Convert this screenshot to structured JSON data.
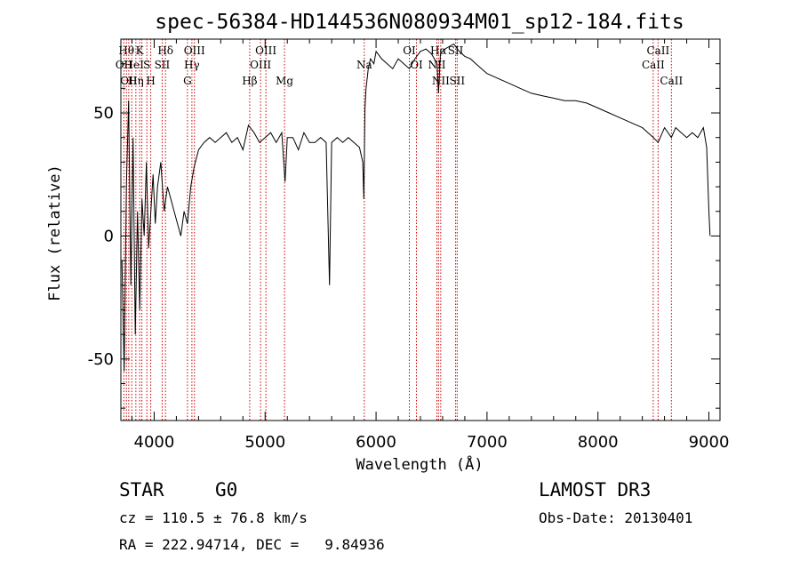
{
  "chart_data": {
    "type": "line",
    "title": "spec-56384-HD144536N080934M01_sp12-184.fits",
    "xlabel": "Wavelength (Å)",
    "ylabel": "Flux (relative)",
    "xlim": [
      3700,
      9100
    ],
    "ylim": [
      -75,
      80
    ],
    "xticks": [
      4000,
      5000,
      6000,
      7000,
      8000,
      9000
    ],
    "yticks": [
      -50,
      0,
      50
    ],
    "line_color": "#000000",
    "marker_color": "#cc0000",
    "series": [
      {
        "name": "flux",
        "x": [
          3710,
          3730,
          3750,
          3770,
          3790,
          3810,
          3830,
          3850,
          3870,
          3890,
          3910,
          3930,
          3950,
          3970,
          3990,
          4010,
          4030,
          4060,
          4090,
          4120,
          4150,
          4180,
          4210,
          4240,
          4270,
          4300,
          4330,
          4360,
          4400,
          4450,
          4500,
          4550,
          4600,
          4650,
          4700,
          4750,
          4800,
          4850,
          4900,
          4950,
          5000,
          5050,
          5100,
          5150,
          5180,
          5200,
          5250,
          5300,
          5350,
          5400,
          5450,
          5500,
          5550,
          5580,
          5600,
          5650,
          5700,
          5750,
          5800,
          5850,
          5880,
          5890,
          5900,
          5910,
          5930,
          5950,
          5980,
          6000,
          6050,
          6100,
          6150,
          6200,
          6250,
          6300,
          6350,
          6400,
          6450,
          6500,
          6550,
          6563,
          6580,
          6620,
          6700,
          6750,
          6800,
          6850,
          6900,
          6950,
          7000,
          7100,
          7200,
          7300,
          7400,
          7500,
          7600,
          7700,
          7800,
          7900,
          8000,
          8100,
          8200,
          8300,
          8400,
          8450,
          8500,
          8542,
          8600,
          8662,
          8700,
          8750,
          8800,
          8850,
          8900,
          8950,
          8980,
          9000,
          9010
        ],
        "values": [
          -10,
          -55,
          20,
          55,
          -20,
          40,
          -40,
          10,
          -30,
          15,
          0,
          30,
          -5,
          10,
          25,
          5,
          20,
          30,
          10,
          20,
          15,
          10,
          5,
          0,
          10,
          5,
          20,
          28,
          35,
          38,
          40,
          38,
          40,
          42,
          38,
          40,
          35,
          45,
          42,
          38,
          40,
          42,
          38,
          42,
          22,
          40,
          40,
          35,
          42,
          38,
          38,
          40,
          38,
          -20,
          38,
          40,
          38,
          40,
          38,
          36,
          30,
          15,
          52,
          60,
          68,
          72,
          70,
          75,
          72,
          70,
          68,
          72,
          70,
          68,
          72,
          75,
          76,
          74,
          70,
          58,
          74,
          76,
          78,
          75,
          73,
          72,
          70,
          68,
          66,
          64,
          62,
          60,
          58,
          57,
          56,
          55,
          55,
          54,
          52,
          50,
          48,
          46,
          44,
          42,
          40,
          38,
          44,
          40,
          44,
          42,
          40,
          42,
          40,
          44,
          36,
          10,
          0
        ]
      }
    ],
    "lines": [
      {
        "wl": 3727,
        "label": "OII",
        "row": 2
      },
      {
        "wl": 3750,
        "label": "Hθ",
        "row": 1
      },
      {
        "wl": 3771,
        "label": "OII",
        "row": 3
      },
      {
        "wl": 3798,
        "label": "He",
        "row": 2
      },
      {
        "wl": 3835,
        "label": "Hη",
        "row": 3
      },
      {
        "wl": 3869,
        "label": "K",
        "row": 1
      },
      {
        "wl": 3889,
        "label": "I",
        "row": 2
      },
      {
        "wl": 3934,
        "label": "S",
        "row": 2
      },
      {
        "wl": 3969,
        "label": "H",
        "row": 3
      },
      {
        "wl": 4072,
        "label": "SII",
        "row": 2
      },
      {
        "wl": 4102,
        "label": "Hδ",
        "row": 1
      },
      {
        "wl": 4300,
        "label": "G",
        "row": 3
      },
      {
        "wl": 4340,
        "label": "Hγ",
        "row": 2
      },
      {
        "wl": 4363,
        "label": "OIII",
        "row": 1
      },
      {
        "wl": 4861,
        "label": "Hβ",
        "row": 3
      },
      {
        "wl": 4959,
        "label": "OIII",
        "row": 2
      },
      {
        "wl": 5007,
        "label": "OIII",
        "row": 1
      },
      {
        "wl": 5175,
        "label": "Mg",
        "row": 3
      },
      {
        "wl": 5894,
        "label": "Na",
        "row": 2
      },
      {
        "wl": 6300,
        "label": "OI",
        "row": 1
      },
      {
        "wl": 6364,
        "label": "OI",
        "row": 2
      },
      {
        "wl": 6548,
        "label": "NII",
        "row": 2
      },
      {
        "wl": 6563,
        "label": "Hα",
        "row": 1
      },
      {
        "wl": 6583,
        "label": "NII",
        "row": 3
      },
      {
        "wl": 6717,
        "label": "SII",
        "row": 1
      },
      {
        "wl": 6731,
        "label": "SII",
        "row": 3
      },
      {
        "wl": 8498,
        "label": "CaII",
        "row": 2
      },
      {
        "wl": 8542,
        "label": "CaII",
        "row": 1
      },
      {
        "wl": 8662,
        "label": "CaII",
        "row": 3
      }
    ]
  },
  "info": {
    "object_class": "STAR",
    "subclass": "G0",
    "survey": "LAMOST DR3",
    "cz_line": "cz = 110.5 ± 76.8 km/s",
    "obs_date_line": "Obs-Date: 20130401",
    "coords_line": "RA = 222.94714, DEC =   9.84936"
  }
}
